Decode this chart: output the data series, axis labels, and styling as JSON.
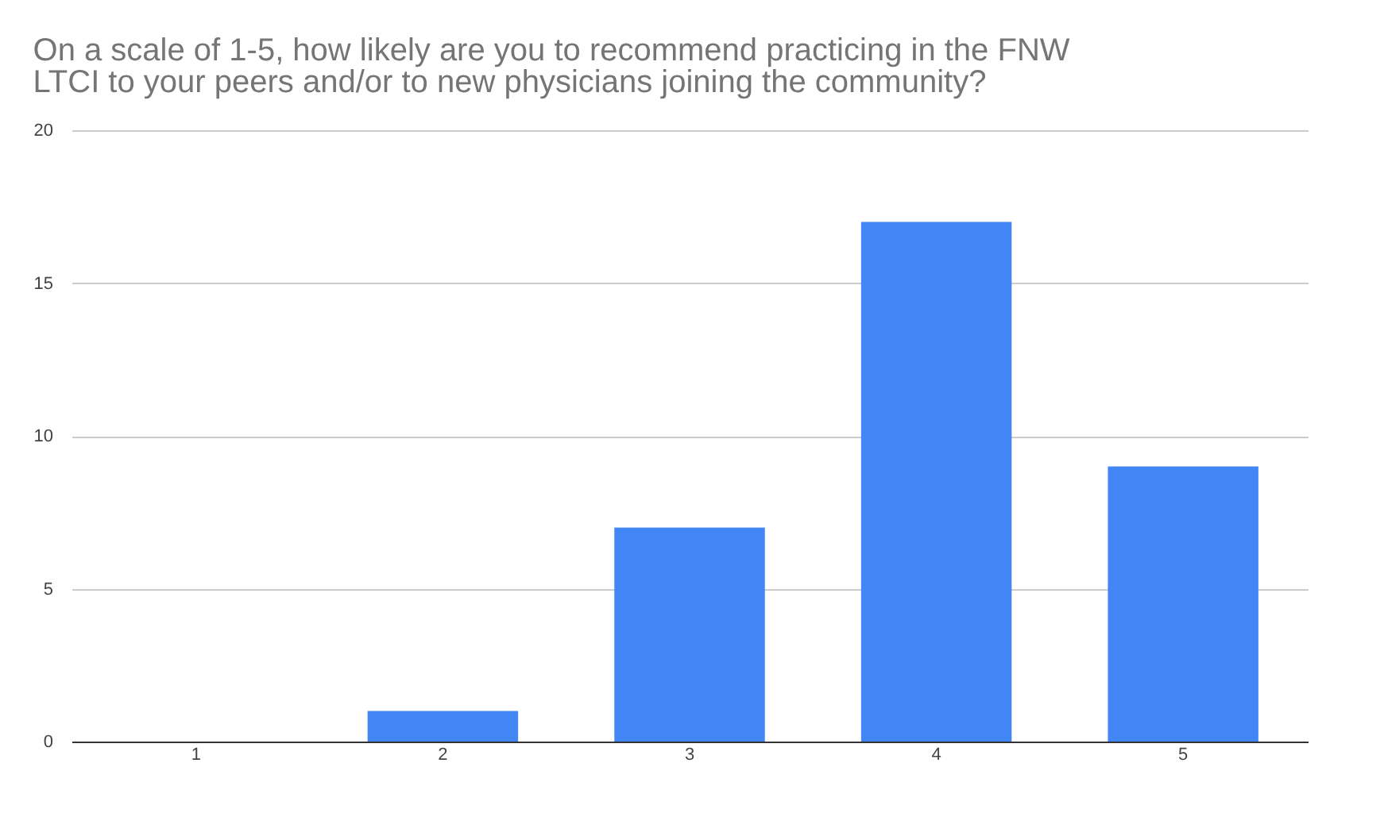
{
  "chart_data": {
    "type": "bar",
    "title": [
      "On a scale of 1-5, how likely are you to recommend practicing in the FNW",
      "LTCI to your peers and/or to new physicians joining the community?"
    ],
    "categories": [
      "1",
      "2",
      "3",
      "4",
      "5"
    ],
    "values": [
      0,
      1,
      7,
      17,
      9
    ],
    "color": "#4285f4",
    "ylim": [
      0,
      20
    ],
    "yticks": [
      0,
      5,
      10,
      15,
      20
    ],
    "grid": "y"
  }
}
